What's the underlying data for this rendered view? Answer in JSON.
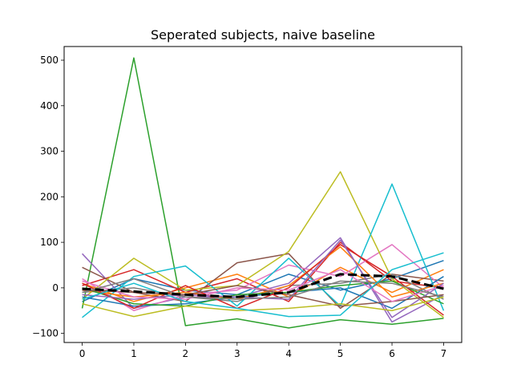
{
  "chart_data": {
    "type": "line",
    "title": "Seperated subjects, naive baseline",
    "xlabel": "",
    "ylabel": "",
    "x": [
      0,
      1,
      2,
      3,
      4,
      5,
      6,
      7
    ],
    "xlim": [
      -0.35,
      7.35
    ],
    "ylim": [
      -120,
      530
    ],
    "xticks": [
      0,
      1,
      2,
      3,
      4,
      5,
      6,
      7
    ],
    "yticks": [
      -100,
      0,
      100,
      200,
      300,
      400,
      500
    ],
    "grid": false,
    "legend": "none",
    "series": [
      {
        "color": "#1f77b4",
        "values": [
          -30,
          20,
          -5,
          -15,
          30,
          -5,
          20,
          60
        ]
      },
      {
        "color": "#ff7f0e",
        "values": [
          10,
          -30,
          0,
          30,
          -20,
          45,
          -10,
          40
        ]
      },
      {
        "color": "#2ca02c",
        "values": [
          -45,
          505,
          -83,
          -68,
          -88,
          -70,
          -80,
          -67
        ]
      },
      {
        "color": "#d62728",
        "values": [
          5,
          40,
          -10,
          20,
          -30,
          100,
          15,
          0
        ]
      },
      {
        "color": "#9467bd",
        "values": [
          75,
          -45,
          -20,
          -20,
          10,
          110,
          -75,
          -15
        ]
      },
      {
        "color": "#8c564b",
        "values": [
          45,
          -10,
          -30,
          55,
          75,
          -45,
          30,
          15
        ]
      },
      {
        "color": "#e377c2",
        "values": [
          20,
          -50,
          -15,
          -5,
          50,
          25,
          95,
          0
        ]
      },
      {
        "color": "#7f7f7f",
        "values": [
          -10,
          0,
          -20,
          -30,
          5,
          10,
          30,
          -25
        ]
      },
      {
        "color": "#bcbd22",
        "values": [
          -25,
          65,
          -5,
          5,
          80,
          255,
          20,
          -65
        ]
      },
      {
        "color": "#17becf",
        "values": [
          -65,
          25,
          48,
          -40,
          65,
          -40,
          228,
          -50
        ]
      },
      {
        "color": "#1f77b4",
        "values": [
          -20,
          -40,
          -35,
          -20,
          -10,
          0,
          -45,
          25
        ]
      },
      {
        "color": "#ff7f0e",
        "values": [
          -5,
          -20,
          -10,
          -25,
          5,
          90,
          -20,
          10
        ]
      },
      {
        "color": "#2ca02c",
        "values": [
          0,
          -35,
          -40,
          -15,
          -10,
          5,
          15,
          -35
        ]
      },
      {
        "color": "#d62728",
        "values": [
          10,
          -45,
          5,
          -45,
          0,
          95,
          25,
          -60
        ]
      },
      {
        "color": "#9467bd",
        "values": [
          -15,
          -25,
          -15,
          -20,
          -25,
          105,
          -65,
          10
        ]
      },
      {
        "color": "#8c564b",
        "values": [
          -5,
          -10,
          -15,
          5,
          -15,
          -40,
          -30,
          -15
        ]
      },
      {
        "color": "#e377c2",
        "values": [
          15,
          -20,
          -25,
          0,
          -5,
          40,
          -30,
          5
        ]
      },
      {
        "color": "#7f7f7f",
        "values": [
          -10,
          20,
          -20,
          -25,
          -20,
          15,
          10,
          -20
        ]
      },
      {
        "color": "#bcbd22",
        "values": [
          -35,
          -63,
          -40,
          -50,
          -45,
          -35,
          -50,
          -20
        ]
      },
      {
        "color": "#17becf",
        "values": [
          -25,
          10,
          -30,
          -45,
          -63,
          -60,
          40,
          77
        ]
      },
      {
        "color": "#000000",
        "dashed": true,
        "values": [
          -2,
          -8,
          -15,
          -20,
          -10,
          30,
          25,
          -2
        ]
      }
    ]
  }
}
